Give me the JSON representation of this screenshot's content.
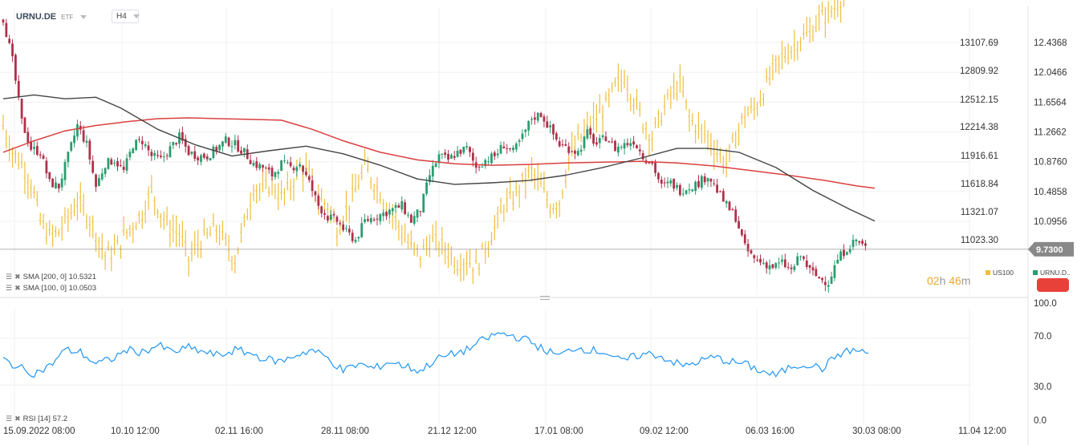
{
  "header": {
    "symbol": "URNU.DE",
    "type": "ETF",
    "timeframe": "H4"
  },
  "indicators": {
    "sma200": "SMA [200, 0] 10.5321",
    "sma100": "SMA [100, 0] 10.0503",
    "rsi": "RSI [14] 57.2"
  },
  "legend": {
    "us100": "US100",
    "urnu": "URNU.D.."
  },
  "countdown": {
    "hours": "02",
    "h": "h",
    "minutes": "46",
    "m": "m"
  },
  "colors": {
    "bull": "#2a9d6f",
    "bear": "#b0314a",
    "us100": "#f0be3c",
    "sma200": "#d94040",
    "sma100": "#444444",
    "rsi": "#2196f3",
    "price_tag": "#888888"
  },
  "chart_data": [
    {
      "type": "candlestick",
      "name": "URNU.DE",
      "overlay": "US100",
      "y_ticks_right": [
        "12.4368",
        "12.0466",
        "11.6564",
        "11.2662",
        "10.8760",
        "10.4858",
        "10.0956"
      ],
      "y_ticks_left": [
        "13107.69",
        "12809.92",
        "12512.15",
        "12214.38",
        "11916.61",
        "11618.84",
        "11321.07",
        "11023.30"
      ],
      "last_price": "9.7300",
      "x_labels": [
        "15.09.2022 08:00",
        "10.10 12:00",
        "02.11 16:00",
        "28.11 08:00",
        "21.12 12:00",
        "17.01 08:00",
        "09.02 12:00",
        "06.03 16:00",
        "30.03 08:00",
        "11.04 12:00"
      ],
      "urnu_path": [
        [
          0,
          12.75
        ],
        [
          3,
          12.2
        ],
        [
          6,
          11.4
        ],
        [
          9,
          11.05
        ],
        [
          12,
          11.0
        ],
        [
          15,
          10.6
        ],
        [
          18,
          10.55
        ],
        [
          21,
          10.95
        ],
        [
          24,
          11.35
        ],
        [
          27,
          11.1
        ],
        [
          30,
          10.55
        ],
        [
          33,
          10.85
        ],
        [
          36,
          10.9
        ],
        [
          39,
          10.75
        ],
        [
          42,
          11.1
        ],
        [
          45,
          11.15
        ],
        [
          48,
          10.95
        ],
        [
          51,
          10.9
        ],
        [
          54,
          11.05
        ],
        [
          57,
          11.2
        ],
        [
          60,
          11.0
        ],
        [
          63,
          10.95
        ],
        [
          66,
          10.95
        ],
        [
          69,
          11.05
        ],
        [
          72,
          11.15
        ],
        [
          75,
          11.1
        ],
        [
          78,
          11.0
        ],
        [
          81,
          10.85
        ],
        [
          84,
          10.8
        ],
        [
          87,
          10.7
        ],
        [
          90,
          10.85
        ],
        [
          93,
          10.8
        ],
        [
          96,
          10.85
        ],
        [
          99,
          10.6
        ],
        [
          102,
          10.3
        ],
        [
          105,
          10.15
        ],
        [
          108,
          10.1
        ],
        [
          111,
          9.95
        ],
        [
          114,
          9.85
        ],
        [
          117,
          10.1
        ],
        [
          120,
          10.15
        ],
        [
          123,
          10.2
        ],
        [
          126,
          10.25
        ],
        [
          129,
          10.3
        ],
        [
          132,
          10.1
        ],
        [
          135,
          10.25
        ],
        [
          138,
          10.7
        ],
        [
          141,
          10.95
        ],
        [
          144,
          10.9
        ],
        [
          147,
          11.0
        ],
        [
          150,
          11.05
        ],
        [
          153,
          10.8
        ],
        [
          156,
          10.9
        ],
        [
          159,
          10.95
        ],
        [
          162,
          11.1
        ],
        [
          165,
          11.0
        ],
        [
          168,
          11.2
        ],
        [
          171,
          11.45
        ],
        [
          174,
          11.5
        ],
        [
          177,
          11.3
        ],
        [
          180,
          11.1
        ],
        [
          183,
          11.05
        ],
        [
          186,
          11.0
        ],
        [
          189,
          11.25
        ],
        [
          192,
          11.1
        ],
        [
          195,
          11.2
        ],
        [
          198,
          11.05
        ],
        [
          201,
          11.1
        ],
        [
          204,
          11.15
        ],
        [
          207,
          10.95
        ],
        [
          210,
          10.85
        ],
        [
          213,
          10.55
        ],
        [
          216,
          10.6
        ],
        [
          219,
          10.5
        ],
        [
          222,
          10.55
        ],
        [
          225,
          10.6
        ],
        [
          228,
          10.7
        ],
        [
          231,
          10.5
        ],
        [
          234,
          10.3
        ],
        [
          237,
          10.15
        ],
        [
          240,
          9.75
        ],
        [
          243,
          9.6
        ],
        [
          246,
          9.55
        ],
        [
          249,
          9.5
        ],
        [
          252,
          9.55
        ],
        [
          255,
          9.45
        ],
        [
          258,
          9.65
        ],
        [
          261,
          9.45
        ],
        [
          264,
          9.35
        ],
        [
          267,
          9.3
        ],
        [
          270,
          9.6
        ],
        [
          273,
          9.75
        ],
        [
          276,
          9.85
        ],
        [
          279,
          9.75
        ]
      ],
      "us100_path": [
        [
          0,
          11.35
        ],
        [
          3,
          11.0
        ],
        [
          6,
          10.85
        ],
        [
          9,
          10.6
        ],
        [
          12,
          10.1
        ],
        [
          15,
          9.9
        ],
        [
          18,
          9.95
        ],
        [
          21,
          10.15
        ],
        [
          24,
          10.35
        ],
        [
          27,
          10.2
        ],
        [
          30,
          9.95
        ],
        [
          33,
          9.65
        ],
        [
          36,
          9.7
        ],
        [
          39,
          9.9
        ],
        [
          42,
          10.05
        ],
        [
          45,
          10.2
        ],
        [
          48,
          10.5
        ],
        [
          51,
          10.2
        ],
        [
          54,
          10.0
        ],
        [
          57,
          9.95
        ],
        [
          60,
          9.6
        ],
        [
          63,
          9.8
        ],
        [
          66,
          9.9
        ],
        [
          69,
          10.0
        ],
        [
          72,
          9.8
        ],
        [
          75,
          9.6
        ],
        [
          78,
          10.05
        ],
        [
          81,
          10.55
        ],
        [
          84,
          10.5
        ],
        [
          87,
          10.6
        ],
        [
          90,
          10.4
        ],
        [
          93,
          10.55
        ],
        [
          96,
          10.8
        ],
        [
          99,
          10.7
        ],
        [
          102,
          10.4
        ],
        [
          105,
          10.3
        ],
        [
          108,
          10.0
        ],
        [
          111,
          10.25
        ],
        [
          114,
          10.5
        ],
        [
          117,
          10.8
        ],
        [
          120,
          10.6
        ],
        [
          123,
          10.4
        ],
        [
          126,
          10.2
        ],
        [
          129,
          9.95
        ],
        [
          132,
          9.75
        ],
        [
          135,
          9.65
        ],
        [
          138,
          9.85
        ],
        [
          141,
          9.8
        ],
        [
          144,
          9.7
        ],
        [
          147,
          9.55
        ],
        [
          150,
          9.6
        ],
        [
          153,
          9.5
        ],
        [
          156,
          9.75
        ],
        [
          159,
          10.0
        ],
        [
          162,
          10.3
        ],
        [
          165,
          10.4
        ],
        [
          168,
          10.6
        ],
        [
          171,
          10.75
        ],
        [
          174,
          10.55
        ],
        [
          177,
          10.3
        ],
        [
          180,
          10.35
        ],
        [
          183,
          10.9
        ],
        [
          186,
          11.15
        ],
        [
          189,
          11.3
        ],
        [
          192,
          11.45
        ],
        [
          195,
          11.6
        ],
        [
          198,
          11.85
        ],
        [
          201,
          12.0
        ],
        [
          204,
          11.7
        ],
        [
          207,
          11.4
        ],
        [
          210,
          11.2
        ],
        [
          213,
          11.5
        ],
        [
          216,
          11.75
        ],
        [
          219,
          11.9
        ],
        [
          222,
          11.45
        ],
        [
          225,
          11.3
        ],
        [
          228,
          11.2
        ],
        [
          231,
          11.0
        ],
        [
          234,
          10.85
        ],
        [
          237,
          11.2
        ],
        [
          240,
          11.5
        ],
        [
          243,
          11.55
        ],
        [
          246,
          11.8
        ],
        [
          249,
          12.05
        ],
        [
          252,
          12.25
        ],
        [
          255,
          12.35
        ],
        [
          258,
          12.5
        ],
        [
          261,
          12.55
        ],
        [
          264,
          12.75
        ],
        [
          267,
          12.8
        ],
        [
          270,
          12.95
        ],
        [
          273,
          13.1
        ],
        [
          276,
          13.25
        ],
        [
          279,
          13.35
        ]
      ],
      "sma100_path": [
        [
          0,
          11.7
        ],
        [
          10,
          11.75
        ],
        [
          20,
          11.7
        ],
        [
          30,
          11.72
        ],
        [
          38,
          11.58
        ],
        [
          50,
          11.3
        ],
        [
          62,
          11.1
        ],
        [
          74,
          10.95
        ],
        [
          86,
          11.02
        ],
        [
          98,
          11.08
        ],
        [
          110,
          10.98
        ],
        [
          122,
          10.83
        ],
        [
          134,
          10.65
        ],
        [
          146,
          10.58
        ],
        [
          158,
          10.6
        ],
        [
          170,
          10.63
        ],
        [
          182,
          10.7
        ],
        [
          194,
          10.8
        ],
        [
          206,
          10.92
        ],
        [
          218,
          11.05
        ],
        [
          228,
          11.05
        ],
        [
          238,
          11.0
        ],
        [
          250,
          10.8
        ],
        [
          262,
          10.5
        ],
        [
          274,
          10.25
        ],
        [
          282,
          10.1
        ]
      ],
      "sma200_path": [
        [
          0,
          11.0
        ],
        [
          10,
          11.15
        ],
        [
          20,
          11.28
        ],
        [
          30,
          11.35
        ],
        [
          40,
          11.4
        ],
        [
          50,
          11.44
        ],
        [
          60,
          11.45
        ],
        [
          70,
          11.44
        ],
        [
          80,
          11.43
        ],
        [
          90,
          11.42
        ],
        [
          100,
          11.3
        ],
        [
          110,
          11.15
        ],
        [
          122,
          11.0
        ],
        [
          134,
          10.9
        ],
        [
          146,
          10.85
        ],
        [
          158,
          10.83
        ],
        [
          170,
          10.84
        ],
        [
          182,
          10.86
        ],
        [
          194,
          10.87
        ],
        [
          206,
          10.88
        ],
        [
          218,
          10.86
        ],
        [
          230,
          10.82
        ],
        [
          242,
          10.76
        ],
        [
          254,
          10.7
        ],
        [
          266,
          10.63
        ],
        [
          276,
          10.56
        ],
        [
          282,
          10.53
        ]
      ],
      "sma200_value": 10.5321,
      "sma100_value": 10.0503
    },
    {
      "type": "line",
      "name": "RSI",
      "y_ticks": [
        "100.0",
        "70.0",
        "30.0",
        "0.0"
      ],
      "value": 57.2,
      "rsi_path": [
        [
          0,
          52
        ],
        [
          5,
          45
        ],
        [
          10,
          40
        ],
        [
          15,
          46
        ],
        [
          20,
          60
        ],
        [
          25,
          58
        ],
        [
          30,
          48
        ],
        [
          35,
          52
        ],
        [
          40,
          60
        ],
        [
          45,
          58
        ],
        [
          50,
          64
        ],
        [
          55,
          58
        ],
        [
          60,
          62
        ],
        [
          65,
          58
        ],
        [
          70,
          55
        ],
        [
          75,
          60
        ],
        [
          80,
          57
        ],
        [
          85,
          52
        ],
        [
          90,
          50
        ],
        [
          95,
          56
        ],
        [
          100,
          60
        ],
        [
          105,
          53
        ],
        [
          110,
          42
        ],
        [
          115,
          48
        ],
        [
          120,
          44
        ],
        [
          125,
          50
        ],
        [
          130,
          46
        ],
        [
          135,
          42
        ],
        [
          140,
          52
        ],
        [
          145,
          56
        ],
        [
          150,
          60
        ],
        [
          155,
          68
        ],
        [
          160,
          74
        ],
        [
          165,
          72
        ],
        [
          170,
          68
        ],
        [
          175,
          60
        ],
        [
          180,
          55
        ],
        [
          185,
          62
        ],
        [
          190,
          60
        ],
        [
          195,
          58
        ],
        [
          200,
          50
        ],
        [
          205,
          55
        ],
        [
          210,
          57
        ],
        [
          215,
          52
        ],
        [
          220,
          46
        ],
        [
          225,
          50
        ],
        [
          230,
          54
        ],
        [
          235,
          50
        ],
        [
          240,
          48
        ],
        [
          245,
          42
        ],
        [
          250,
          38
        ],
        [
          255,
          46
        ],
        [
          260,
          48
        ],
        [
          265,
          44
        ],
        [
          270,
          56
        ],
        [
          275,
          60
        ],
        [
          280,
          57
        ]
      ]
    }
  ]
}
